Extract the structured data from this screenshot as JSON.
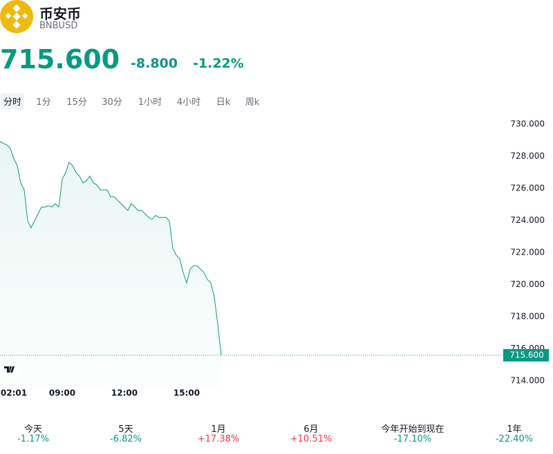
{
  "header": {
    "name": "币安币",
    "symbol": "BNBUSD"
  },
  "quote": {
    "price": "715.600",
    "change": "-8.800",
    "change_percent": "-1.22%"
  },
  "tabs": [
    "分时",
    "1分",
    "15分",
    "30分",
    "1小时",
    "4小时",
    "日k",
    "周k"
  ],
  "chart_data": {
    "type": "line",
    "color": "#089981",
    "categories": [
      null,
      null,
      null,
      null,
      "02:01",
      null,
      null,
      null,
      null,
      null,
      null,
      null,
      null,
      null,
      null,
      null,
      null,
      null,
      "09:00",
      null,
      null,
      null,
      null,
      null,
      null,
      null,
      null,
      null,
      null,
      null,
      null,
      null,
      null,
      null,
      null,
      null,
      "12:00",
      null,
      null,
      null,
      null,
      null,
      null,
      null,
      null,
      null,
      null,
      null,
      null,
      null,
      null,
      null,
      null,
      null,
      "15:00",
      null,
      null,
      null,
      null,
      null,
      null,
      null,
      null,
      null,
      null
    ],
    "values": [
      728.92,
      728.8,
      728.71,
      728.49,
      727.85,
      727.42,
      726.34,
      725.91,
      723.98,
      723.55,
      723.98,
      724.41,
      724.84,
      724.84,
      724.92,
      724.84,
      725.05,
      724.84,
      726.56,
      726.99,
      727.63,
      727.42,
      726.99,
      726.77,
      726.34,
      726.47,
      726.77,
      726.34,
      726.22,
      725.91,
      725.91,
      725.91,
      725.48,
      725.48,
      725.27,
      725.05,
      724.84,
      724.62,
      725.05,
      724.84,
      724.62,
      724.62,
      724.41,
      724.19,
      724.06,
      724.32,
      724.19,
      724.19,
      724.19,
      723.98,
      722.26,
      721.83,
      721.61,
      720.75,
      720.11,
      720.97,
      721.18,
      721.18,
      720.97,
      720.75,
      720.32,
      720.11,
      719.25,
      717.53,
      715.6
    ],
    "ylim": [
      713.66,
      730.86
    ],
    "yticks": [
      {
        "value": 714,
        "label": "714.000"
      },
      {
        "value": 716,
        "label": "716.000"
      },
      {
        "value": 718,
        "label": "718.000"
      },
      {
        "value": 720,
        "label": "720.000"
      },
      {
        "value": 722,
        "label": "722.000"
      },
      {
        "value": 724,
        "label": "724.000"
      },
      {
        "value": 726,
        "label": "726.000"
      },
      {
        "value": 728,
        "label": "728.000"
      },
      {
        "value": 730,
        "label": "730.000"
      }
    ]
  },
  "performance": [
    {
      "label": "今天",
      "value": "-1.17%"
    },
    {
      "label": "5天",
      "value": "-6.82%"
    },
    {
      "label": "1月",
      "value": "+17.38%"
    },
    {
      "label": "6月",
      "value": "+10.51%"
    },
    {
      "label": "今年开始到现在",
      "value": "-17.10%"
    },
    {
      "label": "1年",
      "value": "-22.40%"
    }
  ]
}
